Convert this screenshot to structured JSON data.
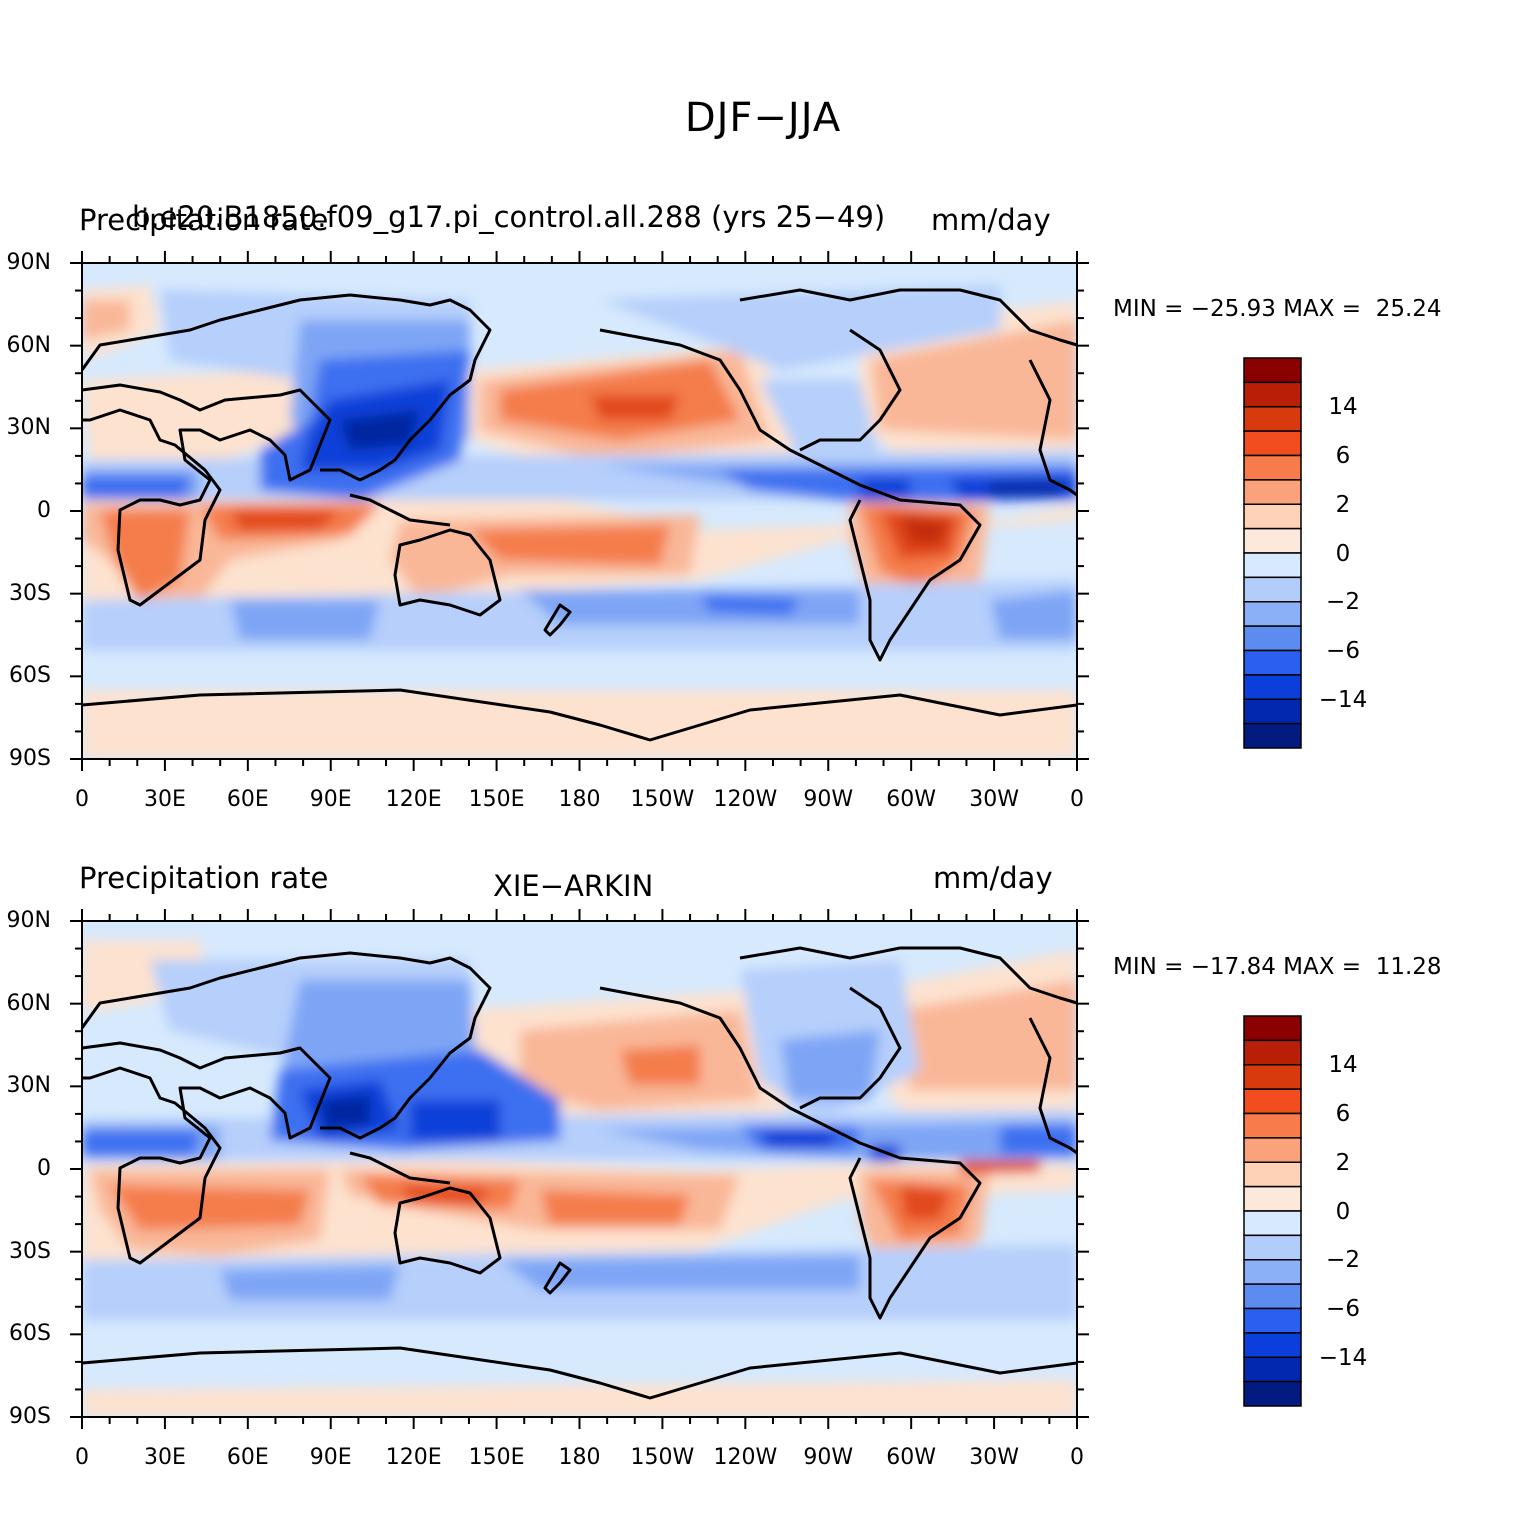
{
  "title": "DJF−JJA",
  "panels": [
    {
      "left_string": "Precipitation rate",
      "center_string": "b.e20.B1850.f09_g17.pi_control.all.288 (yrs 25−49)",
      "right_string": "mm/day",
      "min_max": "MIN = −25.93 MAX =  25.24"
    },
    {
      "left_string": "Precipitation rate",
      "center_string": "XIE−ARKIN",
      "right_string": "mm/day",
      "min_max": "MIN = −17.84 MAX =  11.28"
    }
  ],
  "lat_labels": [
    "90N",
    "60N",
    "30N",
    "0",
    "30S",
    "60S",
    "90S"
  ],
  "lon_labels": [
    "0",
    "30E",
    "60E",
    "90E",
    "120E",
    "150E",
    "180",
    "150W",
    "120W",
    "90W",
    "60W",
    "30W",
    "0"
  ],
  "colorbar": {
    "labels": [
      "14",
      "6",
      "2",
      "0",
      "−2",
      "−6",
      "−14"
    ],
    "colors": [
      "#8b0000",
      "#b91f06",
      "#d83a0d",
      "#f24d1e",
      "#f77b4b",
      "#fba27c",
      "#fdd2b7",
      "#fde9db",
      "#d6e9fd",
      "#b3cdfb",
      "#8bb0f7",
      "#5d8cf1",
      "#2b5ff0",
      "#0b3fdc",
      "#0328b0",
      "#031a80"
    ]
  },
  "palette": {
    "ocean": "#d6e9fd",
    "pos_weak": "#fde2cf",
    "pos_mod": "#f9b798",
    "pos_str": "#f47d4c",
    "pos_vstr": "#e24a1b",
    "pos_max": "#c52f0a",
    "neg_weak": "#b6cffb",
    "neg_mod": "#7ea5f5",
    "neg_str": "#3e6ff0",
    "neg_vstr": "#1140d8",
    "neg_max": "#0626a0",
    "coast": "#000000"
  }
}
